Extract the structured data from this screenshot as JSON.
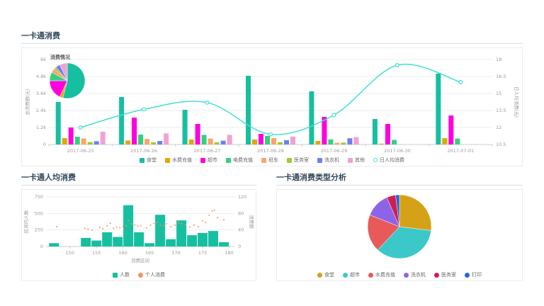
{
  "panels": [
    {
      "title": "一卡通消费"
    },
    {
      "title": "一卡通人均消费"
    },
    {
      "title": "一卡通消费类型分析"
    }
  ],
  "chart_data": [
    {
      "id": "card-consumption-trend",
      "type": "bar",
      "title": "一卡通消费",
      "categories": [
        "2017-06-25",
        "2017-06-26",
        "2017-06-27",
        "2017-06-28",
        "2017-06-29",
        "2017-06-30",
        "2017-07-01"
      ],
      "y_left": {
        "name": "总消费额(元)",
        "ticks": [
          "0",
          "1.2k",
          "2.4k",
          "3.6k",
          "4.8k",
          "6k"
        ],
        "min": 0,
        "max": 6000
      },
      "y_right": {
        "name": "日人均消费(元)",
        "ticks": [
          "10.5",
          "12",
          "13.5",
          "15",
          "16.5",
          "18"
        ],
        "min": 10.5,
        "max": 18
      },
      "grid": true,
      "legend_position": "bottom",
      "series": [
        {
          "name": "食堂",
          "color": "#17bfa1",
          "values": [
            3000,
            3350,
            2450,
            4850,
            3750,
            1800,
            5000
          ]
        },
        {
          "name": "水费充值",
          "color": "#e0a800",
          "values": [
            450,
            280,
            350,
            350,
            250,
            60,
            450
          ]
        },
        {
          "name": "超市",
          "color": "#ff00dd",
          "values": [
            1200,
            1900,
            1450,
            750,
            1950,
            1450,
            2050
          ]
        },
        {
          "name": "电费充值",
          "color": "#33d17e",
          "values": [
            550,
            700,
            680,
            600,
            360,
            320,
            420
          ]
        },
        {
          "name": "班车",
          "color": "#ffa26b",
          "values": [
            420,
            390,
            420,
            450,
            120,
            0,
            0
          ]
        },
        {
          "name": "医务室",
          "color": "#9acd32",
          "values": [
            170,
            150,
            150,
            160,
            130,
            0,
            0
          ]
        },
        {
          "name": "洗衣机",
          "color": "#6e7ff3",
          "values": [
            230,
            250,
            270,
            300,
            440,
            0,
            0
          ]
        },
        {
          "name": "其他",
          "color": "#f0a3d3",
          "values": [
            900,
            780,
            680,
            560,
            520,
            0,
            0
          ]
        }
      ],
      "line_series": {
        "name": "日人均消费",
        "color": "#40e0d0",
        "axis": "right",
        "values": [
          12,
          13.6,
          14.2,
          11.4,
          13.1,
          17.5,
          16
        ]
      },
      "inset_pie": {
        "title": "消费情况",
        "slices": [
          {
            "name": "食堂",
            "value": 54,
            "color": "#17bfa1"
          },
          {
            "name": "水费充值",
            "value": 3,
            "color": "#e0a800"
          },
          {
            "name": "超市",
            "value": 18,
            "color": "#ff00dd"
          },
          {
            "name": "电费充值",
            "value": 8,
            "color": "#33d17e"
          },
          {
            "name": "班车",
            "value": 4,
            "color": "#ffa26b"
          },
          {
            "name": "医务室",
            "value": 2,
            "color": "#9acd32"
          },
          {
            "name": "洗衣机",
            "value": 4,
            "color": "#6e7ff3"
          },
          {
            "name": "其他",
            "value": 7,
            "color": "#f0a3d3"
          }
        ]
      }
    },
    {
      "id": "per-capita-distribution",
      "type": "bar",
      "subtype": "histogram-with-scatter",
      "title": "一卡通人均消费",
      "x_axis": {
        "name": "消费区间",
        "ticks": [
          "150",
          "155",
          "160",
          "165",
          "170",
          "175",
          "180"
        ],
        "min": 145.5,
        "max": 181
      },
      "y_left": {
        "name": "区间内人数",
        "ticks": [
          "0",
          "250",
          "500",
          "750"
        ],
        "min": 0,
        "max": 750
      },
      "y_right": {
        "name": "消费额",
        "ticks": [
          "0",
          "40",
          "80",
          "120"
        ],
        "min": 0,
        "max": 120
      },
      "bins": {
        "name": "人数",
        "color": "#17bfa1",
        "start": 146,
        "width": 2,
        "values": [
          50,
          0,
          0,
          130,
          90,
          215,
          145,
          625,
          215,
          50,
          480,
          110,
          395,
          170,
          205,
          235,
          65
        ]
      },
      "scatter": {
        "name": "个人消费",
        "color": "#f5935a",
        "points": [
          [
            147.5,
            48
          ],
          [
            152.8,
            44
          ],
          [
            153.4,
            42
          ],
          [
            154.2,
            40
          ],
          [
            155.6,
            46
          ],
          [
            156.2,
            43
          ],
          [
            157,
            50
          ],
          [
            157.6,
            56
          ],
          [
            158.2,
            44
          ],
          [
            158.8,
            47
          ],
          [
            159.4,
            46
          ],
          [
            160,
            48
          ],
          [
            160.6,
            50
          ],
          [
            161,
            63
          ],
          [
            161.6,
            55
          ],
          [
            162.2,
            52
          ],
          [
            162.8,
            49
          ],
          [
            163.4,
            50
          ],
          [
            164.4,
            45
          ],
          [
            165.2,
            52
          ],
          [
            165.8,
            56
          ],
          [
            166.4,
            58
          ],
          [
            167,
            52
          ],
          [
            167.6,
            50
          ],
          [
            168.2,
            55
          ],
          [
            169,
            48
          ],
          [
            169.8,
            52
          ],
          [
            170.4,
            58
          ],
          [
            171,
            55
          ],
          [
            171.8,
            52
          ],
          [
            172.6,
            47
          ],
          [
            173.4,
            52
          ],
          [
            174.2,
            48
          ],
          [
            175,
            62
          ],
          [
            175.6,
            58
          ],
          [
            176.2,
            76
          ],
          [
            176.8,
            86
          ],
          [
            177.2,
            88
          ],
          [
            177.8,
            70
          ],
          [
            179,
            65
          ]
        ]
      },
      "legend_position": "bottom"
    },
    {
      "id": "consumption-type-share",
      "type": "pie",
      "title": "一卡通消费类型分析",
      "legend_position": "bottom",
      "slices": [
        {
          "name": "食堂",
          "value": 27,
          "color": "#d5a117"
        },
        {
          "name": "超市",
          "value": 35,
          "color": "#3cc8c8"
        },
        {
          "name": "水费充值",
          "value": 19,
          "color": "#e85a5a"
        },
        {
          "name": "洗衣机",
          "value": 12.5,
          "color": "#8d64e8"
        },
        {
          "name": "医务室",
          "value": 4.5,
          "color": "#cf1f52"
        },
        {
          "name": "打印",
          "value": 2,
          "color": "#2468e0"
        }
      ]
    }
  ]
}
